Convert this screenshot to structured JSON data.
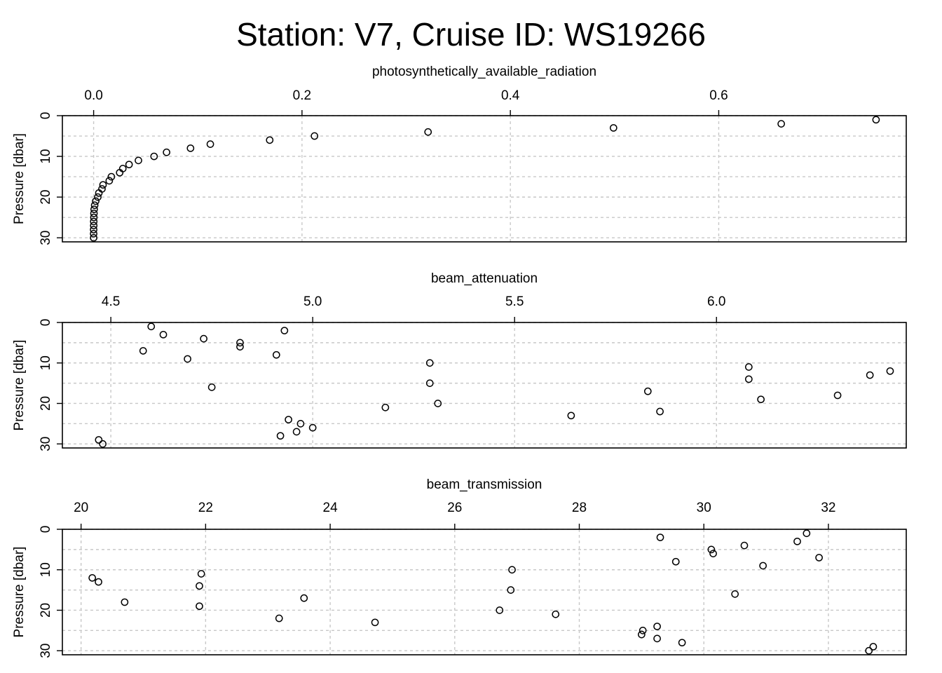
{
  "title": "Station: V7, Cruise ID: WS19266",
  "chart_data": [
    {
      "type": "scatter",
      "xlabel": "photosynthetically_available_radiation",
      "ylabel": "Pressure [dbar]",
      "xlim": [
        -0.03,
        0.78
      ],
      "ylim": [
        0,
        31
      ],
      "y_reversed": true,
      "x_axis_position": "top",
      "grid": true,
      "xticks": [
        0.0,
        0.2,
        0.4,
        0.6
      ],
      "xtick_labels": [
        "0.0",
        "0.2",
        "0.4",
        "0.6"
      ],
      "yticks": [
        0,
        10,
        20,
        30
      ],
      "ytick_labels": [
        "0",
        "10",
        "20",
        "30"
      ],
      "x": [
        0.751,
        0.66,
        0.499,
        0.321,
        0.212,
        0.169,
        0.112,
        0.093,
        0.07,
        0.058,
        0.043,
        0.034,
        0.028,
        0.025,
        0.017,
        0.015,
        0.009,
        0.008,
        0.005,
        0.004,
        0.002,
        0.001,
        0.0005,
        0.0003,
        0.0002,
        0.0001,
        0.0001,
        0.0,
        0.0,
        0.0
      ],
      "y": [
        1,
        2,
        3,
        4,
        5,
        6,
        7,
        8,
        9,
        10,
        11,
        12,
        13,
        14,
        15,
        16,
        17,
        18,
        19,
        20,
        21,
        22,
        23,
        24,
        25,
        26,
        27,
        28,
        29,
        30
      ]
    },
    {
      "type": "scatter",
      "xlabel": "beam_attenuation",
      "ylabel": "Pressure [dbar]",
      "xlim": [
        4.38,
        6.47
      ],
      "ylim": [
        0,
        31
      ],
      "y_reversed": true,
      "x_axis_position": "top",
      "grid": true,
      "xticks": [
        4.5,
        5.0,
        5.5,
        6.0
      ],
      "xtick_labels": [
        "4.5",
        "5.0",
        "5.5",
        "6.0"
      ],
      "yticks": [
        0,
        10,
        20,
        30
      ],
      "ytick_labels": [
        "0",
        "10",
        "20",
        "30"
      ],
      "x": [
        4.6,
        4.93,
        4.63,
        4.73,
        4.82,
        4.82,
        4.58,
        4.91,
        4.69,
        5.29,
        6.08,
        6.43,
        6.38,
        6.08,
        5.29,
        4.75,
        5.83,
        6.3,
        6.11,
        5.31,
        5.18,
        5.86,
        5.64,
        4.94,
        4.97,
        5.0,
        4.96,
        4.92,
        4.47,
        4.48
      ],
      "y": [
        1,
        2,
        3,
        4,
        5,
        6,
        7,
        8,
        9,
        10,
        11,
        12,
        13,
        14,
        15,
        16,
        17,
        18,
        19,
        20,
        21,
        22,
        23,
        24,
        25,
        26,
        27,
        28,
        29,
        30
      ]
    },
    {
      "type": "scatter",
      "xlabel": "beam_transmission",
      "ylabel": "Pressure [dbar]",
      "xlim": [
        19.7,
        33.25
      ],
      "ylim": [
        0,
        31
      ],
      "y_reversed": true,
      "x_axis_position": "top",
      "grid": true,
      "xticks": [
        20,
        22,
        24,
        26,
        28,
        30,
        32
      ],
      "xtick_labels": [
        "20",
        "22",
        "24",
        "26",
        "28",
        "30",
        "32"
      ],
      "yticks": [
        0,
        10,
        20,
        30
      ],
      "ytick_labels": [
        "0",
        "10",
        "20",
        "30"
      ],
      "x": [
        31.65,
        29.3,
        31.5,
        30.65,
        30.12,
        30.15,
        31.85,
        29.55,
        30.95,
        26.92,
        21.93,
        20.18,
        20.28,
        21.9,
        26.9,
        30.5,
        23.58,
        20.7,
        21.9,
        26.72,
        27.62,
        23.18,
        24.72,
        29.25,
        29.02,
        29.0,
        29.25,
        29.65,
        32.72,
        32.65
      ],
      "y": [
        1,
        2,
        3,
        4,
        5,
        6,
        7,
        8,
        9,
        10,
        11,
        12,
        13,
        14,
        15,
        16,
        17,
        18,
        19,
        20,
        21,
        22,
        23,
        24,
        25,
        26,
        27,
        28,
        29,
        30
      ]
    }
  ]
}
